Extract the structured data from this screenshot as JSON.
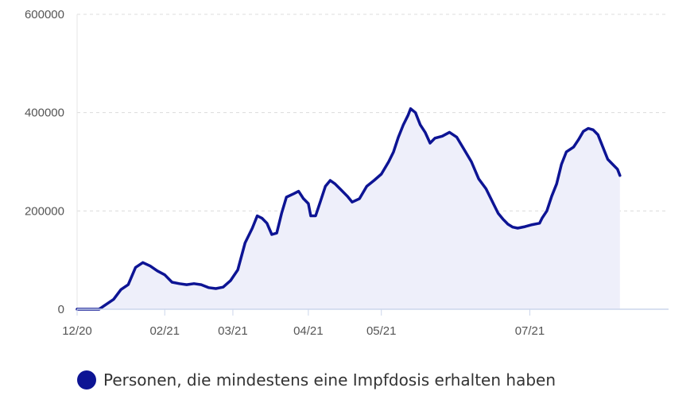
{
  "chart_data": {
    "type": "area",
    "title": "",
    "xlabel": "",
    "ylabel": "",
    "ylim": [
      0,
      600000
    ],
    "y_ticks": [
      0,
      200000,
      400000,
      600000
    ],
    "y_tick_labels": [
      "0",
      "200000",
      "400000",
      "600000"
    ],
    "x_range": [
      "2020-12-27",
      "2021-08-27"
    ],
    "x_ticks": [
      {
        "date": "2020-12-27",
        "label": "12/20"
      },
      {
        "date": "2021-02-01",
        "label": "02/21"
      },
      {
        "date": "2021-03-01",
        "label": "03/21"
      },
      {
        "date": "2021-04-01",
        "label": "04/21"
      },
      {
        "date": "2021-05-01",
        "label": "05/21"
      },
      {
        "date": "2021-07-01",
        "label": "07/21"
      }
    ],
    "grid": "horizontal dashed",
    "legend_position": "bottom",
    "series": [
      {
        "name": "Personen, die mindestens eine Impfdosis erhalten haben",
        "color": "#0d1494",
        "fill": "#eeeffa",
        "points": [
          [
            "2020-12-27",
            0
          ],
          [
            "2021-01-01",
            0
          ],
          [
            "2021-01-05",
            0
          ],
          [
            "2021-01-08",
            10000
          ],
          [
            "2021-01-11",
            20000
          ],
          [
            "2021-01-14",
            40000
          ],
          [
            "2021-01-17",
            50000
          ],
          [
            "2021-01-20",
            85000
          ],
          [
            "2021-01-23",
            95000
          ],
          [
            "2021-01-26",
            88000
          ],
          [
            "2021-01-29",
            78000
          ],
          [
            "2021-02-01",
            70000
          ],
          [
            "2021-02-04",
            55000
          ],
          [
            "2021-02-07",
            52000
          ],
          [
            "2021-02-10",
            50000
          ],
          [
            "2021-02-13",
            52000
          ],
          [
            "2021-02-16",
            50000
          ],
          [
            "2021-02-19",
            44000
          ],
          [
            "2021-02-22",
            42000
          ],
          [
            "2021-02-25",
            45000
          ],
          [
            "2021-02-28",
            58000
          ],
          [
            "2021-03-03",
            80000
          ],
          [
            "2021-03-06",
            135000
          ],
          [
            "2021-03-09",
            165000
          ],
          [
            "2021-03-11",
            190000
          ],
          [
            "2021-03-13",
            185000
          ],
          [
            "2021-03-15",
            175000
          ],
          [
            "2021-03-17",
            152000
          ],
          [
            "2021-03-19",
            155000
          ],
          [
            "2021-03-21",
            195000
          ],
          [
            "2021-03-23",
            228000
          ],
          [
            "2021-03-26",
            235000
          ],
          [
            "2021-03-28",
            240000
          ],
          [
            "2021-03-30",
            225000
          ],
          [
            "2021-04-01",
            215000
          ],
          [
            "2021-04-02",
            190000
          ],
          [
            "2021-04-04",
            190000
          ],
          [
            "2021-04-06",
            220000
          ],
          [
            "2021-04-08",
            250000
          ],
          [
            "2021-04-10",
            262000
          ],
          [
            "2021-04-12",
            255000
          ],
          [
            "2021-04-14",
            245000
          ],
          [
            "2021-04-17",
            230000
          ],
          [
            "2021-04-19",
            218000
          ],
          [
            "2021-04-22",
            225000
          ],
          [
            "2021-04-25",
            250000
          ],
          [
            "2021-04-28",
            262000
          ],
          [
            "2021-05-01",
            275000
          ],
          [
            "2021-05-04",
            300000
          ],
          [
            "2021-05-06",
            320000
          ],
          [
            "2021-05-08",
            350000
          ],
          [
            "2021-05-10",
            375000
          ],
          [
            "2021-05-12",
            395000
          ],
          [
            "2021-05-13",
            408000
          ],
          [
            "2021-05-15",
            400000
          ],
          [
            "2021-05-17",
            375000
          ],
          [
            "2021-05-19",
            360000
          ],
          [
            "2021-05-21",
            338000
          ],
          [
            "2021-05-23",
            348000
          ],
          [
            "2021-05-26",
            352000
          ],
          [
            "2021-05-29",
            360000
          ],
          [
            "2021-06-01",
            350000
          ],
          [
            "2021-06-04",
            325000
          ],
          [
            "2021-06-07",
            300000
          ],
          [
            "2021-06-10",
            265000
          ],
          [
            "2021-06-13",
            245000
          ],
          [
            "2021-06-16",
            215000
          ],
          [
            "2021-06-18",
            195000
          ],
          [
            "2021-06-20",
            183000
          ],
          [
            "2021-06-22",
            173000
          ],
          [
            "2021-06-24",
            167000
          ],
          [
            "2021-06-26",
            165000
          ],
          [
            "2021-06-29",
            168000
          ],
          [
            "2021-07-02",
            172000
          ],
          [
            "2021-07-05",
            175000
          ],
          [
            "2021-07-06",
            185000
          ],
          [
            "2021-07-08",
            200000
          ],
          [
            "2021-07-10",
            230000
          ],
          [
            "2021-07-12",
            255000
          ],
          [
            "2021-07-14",
            295000
          ],
          [
            "2021-07-16",
            320000
          ],
          [
            "2021-07-19",
            330000
          ],
          [
            "2021-07-21",
            345000
          ],
          [
            "2021-07-23",
            362000
          ],
          [
            "2021-07-25",
            368000
          ],
          [
            "2021-07-27",
            365000
          ],
          [
            "2021-07-29",
            355000
          ],
          [
            "2021-07-31",
            330000
          ],
          [
            "2021-08-02",
            305000
          ],
          [
            "2021-08-04",
            295000
          ],
          [
            "2021-08-06",
            285000
          ],
          [
            "2021-08-07",
            272000
          ]
        ]
      }
    ]
  }
}
